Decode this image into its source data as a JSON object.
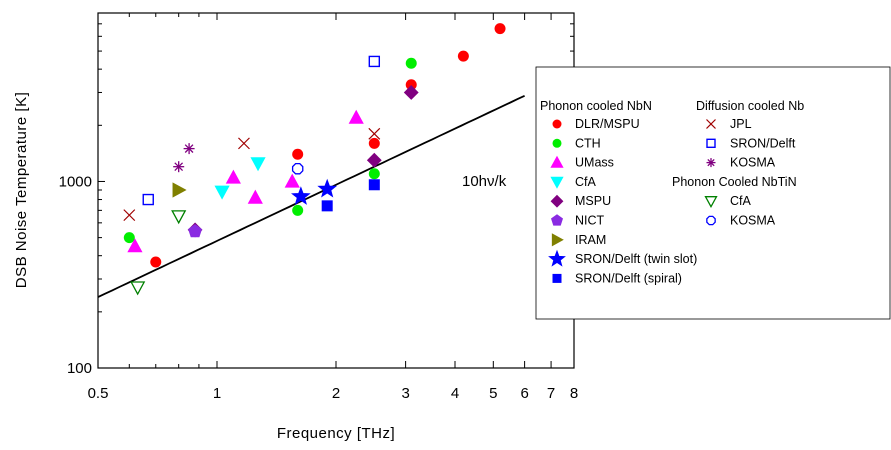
{
  "chart_data": {
    "type": "scatter",
    "xlabel": "Frequency [THz]",
    "ylabel": "DSB Noise Temperature [K]",
    "x_scale": "log",
    "y_scale": "log",
    "xlim": [
      0.5,
      8
    ],
    "ylim": [
      100,
      8000
    ],
    "x_ticks": [
      {
        "value": 0.5,
        "label": "0.5"
      },
      {
        "value": 1,
        "label": "1"
      },
      {
        "value": 2,
        "label": "2"
      },
      {
        "value": 3,
        "label": "3"
      },
      {
        "value": 4,
        "label": "4"
      },
      {
        "value": 5,
        "label": "5"
      },
      {
        "value": 6,
        "label": "6"
      },
      {
        "value": 7,
        "label": "7"
      },
      {
        "value": 8,
        "label": "8"
      }
    ],
    "y_ticks": [
      {
        "value": 100,
        "label": "100"
      },
      {
        "value": 1000,
        "label": "1000"
      }
    ],
    "grid": false,
    "legend_position": "right",
    "line": {
      "label": "10hν/k",
      "factor_K_per_THz": 480,
      "color": "#000000"
    },
    "legend_groups": [
      {
        "title": "Phonon cooled NbN",
        "series_indices": [
          0,
          1,
          2,
          3,
          4,
          5,
          6,
          7,
          8
        ]
      },
      {
        "title": "Diffusion cooled Nb",
        "series_indices": [
          9,
          10,
          11
        ]
      },
      {
        "title": "Phonon Cooled NbTiN",
        "series_indices": [
          12,
          13
        ]
      }
    ],
    "series": [
      {
        "name": "DLR/MSPU",
        "marker": "circle-filled",
        "color": "#ff0000",
        "points": [
          [
            0.7,
            370
          ],
          [
            1.6,
            1400
          ],
          [
            2.5,
            1600
          ],
          [
            3.1,
            3300
          ],
          [
            4.2,
            4700
          ],
          [
            5.2,
            6600
          ]
        ]
      },
      {
        "name": "CTH",
        "marker": "circle-filled",
        "color": "#00ee00",
        "points": [
          [
            0.6,
            500
          ],
          [
            1.6,
            700
          ],
          [
            2.5,
            1100
          ],
          [
            3.1,
            4300
          ]
        ]
      },
      {
        "name": "UMass",
        "marker": "triangle-up",
        "color": "#ff00ff",
        "points": [
          [
            0.62,
            450
          ],
          [
            1.1,
            1050
          ],
          [
            1.25,
            820
          ],
          [
            1.55,
            1000
          ],
          [
            2.25,
            2200
          ]
        ]
      },
      {
        "name": "CfA",
        "marker": "triangle-down",
        "color": "#00ffff",
        "points": [
          [
            1.03,
            880
          ],
          [
            1.27,
            1250
          ]
        ]
      },
      {
        "name": "MSPU",
        "marker": "diamond",
        "color": "#800080",
        "points": [
          [
            0.88,
            550
          ],
          [
            2.5,
            1300
          ],
          [
            3.1,
            3000
          ]
        ]
      },
      {
        "name": "NICT",
        "marker": "pentagon",
        "color": "#8a2be2",
        "points": [
          [
            0.88,
            540
          ]
        ]
      },
      {
        "name": "IRAM",
        "marker": "triangle-right",
        "color": "#808000",
        "points": [
          [
            0.8,
            900
          ]
        ]
      },
      {
        "name": "SRON/Delft (twin slot)",
        "marker": "star",
        "color": "#0000ff",
        "points": [
          [
            1.63,
            830
          ],
          [
            1.9,
            910
          ]
        ]
      },
      {
        "name": "SRON/Delft (spiral)",
        "marker": "square-filled",
        "color": "#0000ff",
        "points": [
          [
            1.9,
            740
          ],
          [
            2.5,
            960
          ]
        ]
      },
      {
        "name": "JPL",
        "marker": "x",
        "color": "#a00000",
        "points": [
          [
            0.6,
            660
          ],
          [
            1.17,
            1600
          ],
          [
            2.5,
            1800
          ]
        ]
      },
      {
        "name": "SRON/Delft",
        "marker": "square-open",
        "color": "#0000ff",
        "points": [
          [
            0.67,
            800
          ],
          [
            2.5,
            4400
          ]
        ]
      },
      {
        "name": "KOSMA",
        "marker": "asterisk",
        "color": "#800080",
        "points": [
          [
            0.8,
            1200
          ],
          [
            0.85,
            1500
          ]
        ]
      },
      {
        "name": "CfA",
        "marker": "triangle-down-open",
        "color": "#008000",
        "points": [
          [
            0.63,
            270
          ],
          [
            0.8,
            650
          ]
        ]
      },
      {
        "name": "KOSMA",
        "marker": "octagon-open",
        "color": "#0000ff",
        "points": [
          [
            1.6,
            1170
          ]
        ]
      }
    ]
  }
}
